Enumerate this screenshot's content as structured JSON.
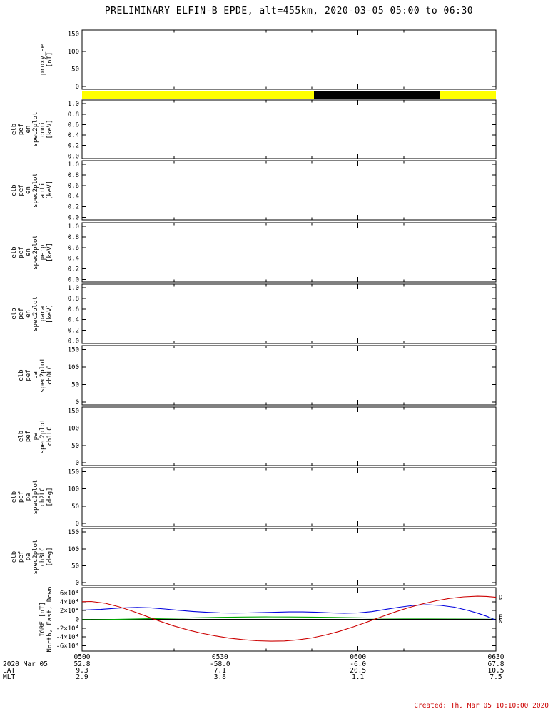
{
  "title": "PRELIMINARY ELFIN-B EPDE, alt=455km, 2020-03-05 05:00 to 06:30",
  "footer": {
    "created": "Created: Thu Mar 05 10:10:00 2020"
  },
  "colors": {
    "axis": "#000000",
    "north_line": "#0000dd",
    "east_line": "#00aa00",
    "down_line": "#cc0000",
    "bar_yellow": "#ffff00",
    "bar_black": "#000000",
    "created_text": "#cc0000"
  },
  "xaxis": {
    "t_range": [
      0,
      90
    ],
    "major_t": [
      0,
      30,
      60,
      90
    ],
    "minor_step": 10,
    "time_ticks": [
      "0500",
      "0530",
      "0600",
      "0630"
    ],
    "rows": [
      {
        "label": "2020 Mar 05",
        "values": [
          "52.8",
          "-58.0",
          "-6.0",
          "67.8"
        ]
      },
      {
        "label": "LAT",
        "values": [
          "9.3",
          "7.1",
          "20.5",
          "10.5"
        ]
      },
      {
        "label": "MLT",
        "values": [
          "2.9",
          "3.8",
          "1.1",
          "7.5"
        ]
      },
      {
        "label": "L",
        "values": [
          "",
          "",
          "",
          ""
        ]
      }
    ]
  },
  "chart_data": [
    {
      "id": "proxy_ae",
      "type": "empty",
      "ylabel_lines": [
        "proxy_ae",
        "[nT]"
      ],
      "ylim": [
        -8,
        161
      ],
      "yticks": [
        {
          "v": 0,
          "l": "0"
        },
        {
          "v": 50,
          "l": "50"
        },
        {
          "v": 100,
          "l": "100"
        },
        {
          "v": 150,
          "l": "150"
        }
      ]
    },
    {
      "id": "position_bar",
      "type": "bar",
      "segments": [
        {
          "from": 0.0,
          "to": 0.56,
          "color": "#ffff00"
        },
        {
          "from": 0.56,
          "to": 0.865,
          "color": "#000000"
        },
        {
          "from": 0.865,
          "to": 1.0,
          "color": "#ffff00"
        }
      ]
    },
    {
      "id": "omni",
      "type": "empty",
      "ylabel_lines": [
        "elb",
        "pef",
        "en",
        "spec2plot",
        "omni",
        "[keV]"
      ],
      "ylim": [
        -0.05,
        1.07
      ],
      "yticks": [
        {
          "v": 0,
          "l": "0.0"
        },
        {
          "v": 0.2,
          "l": "0.2"
        },
        {
          "v": 0.4,
          "l": "0.4"
        },
        {
          "v": 0.6,
          "l": "0.6"
        },
        {
          "v": 0.8,
          "l": "0.8"
        },
        {
          "v": 1.0,
          "l": "1.0"
        }
      ]
    },
    {
      "id": "anti",
      "type": "empty",
      "ylabel_lines": [
        "elb",
        "pef",
        "en",
        "spec2plot",
        "anti",
        "[keV]"
      ],
      "ylim": [
        -0.05,
        1.07
      ],
      "yticks": [
        {
          "v": 0,
          "l": "0.0"
        },
        {
          "v": 0.2,
          "l": "0.2"
        },
        {
          "v": 0.4,
          "l": "0.4"
        },
        {
          "v": 0.6,
          "l": "0.6"
        },
        {
          "v": 0.8,
          "l": "0.8"
        },
        {
          "v": 1.0,
          "l": "1.0"
        }
      ]
    },
    {
      "id": "perp",
      "type": "empty",
      "ylabel_lines": [
        "elb",
        "pef",
        "en",
        "spec2plot",
        "perp",
        "[keV]"
      ],
      "ylim": [
        -0.05,
        1.07
      ],
      "yticks": [
        {
          "v": 0,
          "l": "0.0"
        },
        {
          "v": 0.2,
          "l": "0.2"
        },
        {
          "v": 0.4,
          "l": "0.4"
        },
        {
          "v": 0.6,
          "l": "0.6"
        },
        {
          "v": 0.8,
          "l": "0.8"
        },
        {
          "v": 1.0,
          "l": "1.0"
        }
      ]
    },
    {
      "id": "para",
      "type": "empty",
      "ylabel_lines": [
        "elb",
        "pef",
        "en",
        "spec2plot",
        "para",
        "[keV]"
      ],
      "ylim": [
        -0.05,
        1.07
      ],
      "yticks": [
        {
          "v": 0,
          "l": "0.0"
        },
        {
          "v": 0.2,
          "l": "0.2"
        },
        {
          "v": 0.4,
          "l": "0.4"
        },
        {
          "v": 0.6,
          "l": "0.6"
        },
        {
          "v": 0.8,
          "l": "0.8"
        },
        {
          "v": 1.0,
          "l": "1.0"
        }
      ]
    },
    {
      "id": "ch0LC",
      "type": "empty",
      "ylabel_lines": [
        "elb",
        "pef",
        "pa",
        "spec2plot",
        "ch0LC"
      ],
      "ylim": [
        -8,
        161
      ],
      "yticks": [
        {
          "v": 0,
          "l": "0"
        },
        {
          "v": 50,
          "l": "50"
        },
        {
          "v": 100,
          "l": "100"
        },
        {
          "v": 150,
          "l": "150"
        }
      ]
    },
    {
      "id": "ch1LC",
      "type": "empty",
      "ylabel_lines": [
        "elb",
        "pef",
        "pa",
        "spec2plot",
        "ch1LC"
      ],
      "ylim": [
        -8,
        161
      ],
      "yticks": [
        {
          "v": 0,
          "l": "0"
        },
        {
          "v": 50,
          "l": "50"
        },
        {
          "v": 100,
          "l": "100"
        },
        {
          "v": 150,
          "l": "150"
        }
      ]
    },
    {
      "id": "ch2LC",
      "type": "empty",
      "ylabel_lines": [
        "elb",
        "pef",
        "pa",
        "spec2plot",
        "ch2LC",
        "[deg]"
      ],
      "ylim": [
        -8,
        161
      ],
      "yticks": [
        {
          "v": 0,
          "l": "0"
        },
        {
          "v": 50,
          "l": "50"
        },
        {
          "v": 100,
          "l": "100"
        },
        {
          "v": 150,
          "l": "150"
        }
      ]
    },
    {
      "id": "ch3LC",
      "type": "empty",
      "ylabel_lines": [
        "elb",
        "pef",
        "pa",
        "spec2plot",
        "ch3LC",
        "[deg]"
      ],
      "ylim": [
        -8,
        161
      ],
      "yticks": [
        {
          "v": 0,
          "l": "0"
        },
        {
          "v": 50,
          "l": "50"
        },
        {
          "v": 100,
          "l": "100"
        },
        {
          "v": 150,
          "l": "150"
        }
      ]
    },
    {
      "id": "igrf",
      "type": "line",
      "ylabel_lines": [
        "IGRF [nT]",
        "North, East, Down"
      ],
      "ylim": [
        -72000,
        72000
      ],
      "zero_line": true,
      "yticks": [
        {
          "v": -60000,
          "l": "-6×10⁴"
        },
        {
          "v": -40000,
          "l": "-4×10⁴"
        },
        {
          "v": -20000,
          "l": "-2×10⁴"
        },
        {
          "v": 0,
          "l": "0"
        },
        {
          "v": 20000,
          "l": "2×10⁴"
        },
        {
          "v": 40000,
          "l": "4×10⁴"
        },
        {
          "v": 60000,
          "l": "6×10⁴"
        }
      ],
      "series": [
        {
          "name": "N",
          "color": "#0000dd",
          "label_v": -4000,
          "points": [
            [
              0,
              21000
            ],
            [
              4,
              22500
            ],
            [
              8,
              25500
            ],
            [
              12,
              27000
            ],
            [
              15,
              26000
            ],
            [
              18,
              23500
            ],
            [
              21,
              20500
            ],
            [
              24,
              18000
            ],
            [
              27,
              16000
            ],
            [
              30,
              14800
            ],
            [
              33,
              14300
            ],
            [
              36,
              14500
            ],
            [
              39,
              15200
            ],
            [
              42,
              16000
            ],
            [
              45,
              16800
            ],
            [
              48,
              16800
            ],
            [
              51,
              16000
            ],
            [
              54,
              14800
            ],
            [
              57,
              13800
            ],
            [
              60,
              14500
            ],
            [
              63,
              17500
            ],
            [
              66,
              22500
            ],
            [
              69,
              27500
            ],
            [
              72,
              31500
            ],
            [
              75,
              33000
            ],
            [
              78,
              31500
            ],
            [
              81,
              27500
            ],
            [
              84,
              20000
            ],
            [
              86,
              14000
            ],
            [
              88,
              7000
            ],
            [
              90,
              -2000
            ]
          ]
        },
        {
          "name": "E",
          "color": "#00aa00",
          "label_v": 6000,
          "points": [
            [
              0,
              -1000
            ],
            [
              5,
              -500
            ],
            [
              10,
              500
            ],
            [
              15,
              1500
            ],
            [
              20,
              2500
            ],
            [
              25,
              3500
            ],
            [
              30,
              4500
            ],
            [
              35,
              5200
            ],
            [
              40,
              5500
            ],
            [
              45,
              5400
            ],
            [
              50,
              5000
            ],
            [
              55,
              4300
            ],
            [
              60,
              3500
            ],
            [
              65,
              2800
            ],
            [
              70,
              2300
            ],
            [
              75,
              2200
            ],
            [
              80,
              2400
            ],
            [
              85,
              2800
            ],
            [
              90,
              3000
            ]
          ]
        },
        {
          "name": "D",
          "color": "#cc0000",
          "label_v": 50000,
          "points": [
            [
              0,
              40000
            ],
            [
              2,
              40500
            ],
            [
              5,
              36500
            ],
            [
              8,
              28500
            ],
            [
              11,
              18500
            ],
            [
              14,
              7000
            ],
            [
              17,
              -4500
            ],
            [
              20,
              -15000
            ],
            [
              23,
              -24000
            ],
            [
              26,
              -31500
            ],
            [
              29,
              -37500
            ],
            [
              32,
              -42500
            ],
            [
              35,
              -46000
            ],
            [
              38,
              -48500
            ],
            [
              41,
              -49500
            ],
            [
              44,
              -49000
            ],
            [
              47,
              -46500
            ],
            [
              50,
              -42000
            ],
            [
              53,
              -35500
            ],
            [
              56,
              -27000
            ],
            [
              59,
              -17000
            ],
            [
              62,
              -6000
            ],
            [
              65,
              5500
            ],
            [
              68,
              16500
            ],
            [
              71,
              26500
            ],
            [
              74,
              35000
            ],
            [
              77,
              42000
            ],
            [
              80,
              47500
            ],
            [
              83,
              51000
            ],
            [
              86,
              52500
            ],
            [
              88,
              52000
            ],
            [
              90,
              50000
            ]
          ]
        }
      ]
    }
  ]
}
